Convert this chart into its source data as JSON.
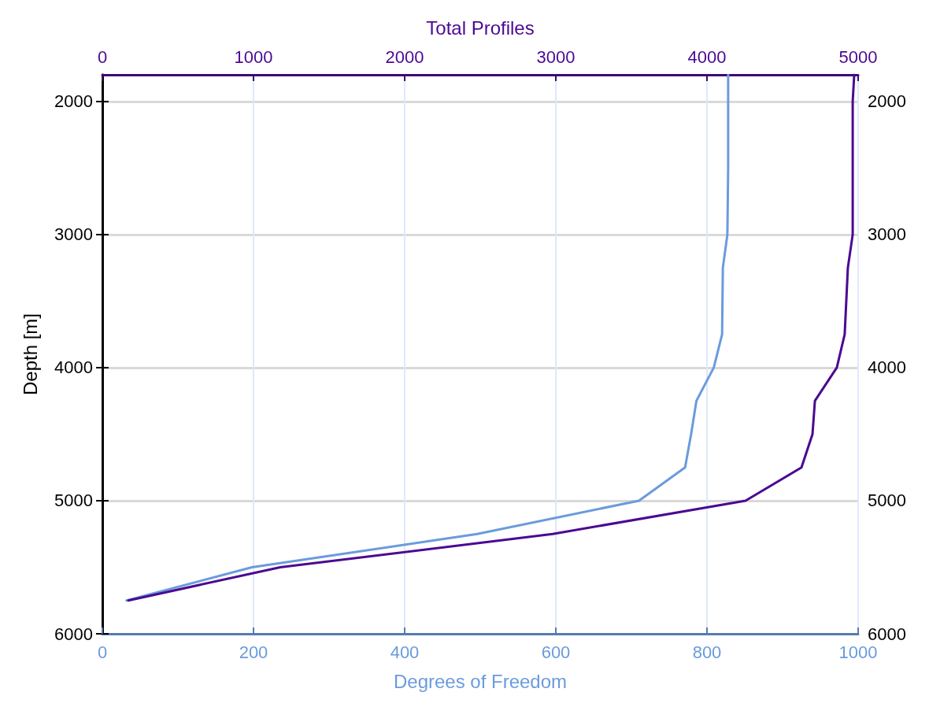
{
  "chart_data": {
    "type": "line",
    "xlabel": "Degrees of Freedom",
    "x2label": "Total Profiles",
    "ylabel": "Depth [m]",
    "xlim": [
      0,
      1000
    ],
    "xticks": [
      0,
      200,
      400,
      600,
      800,
      1000
    ],
    "x2lim": [
      0,
      5000
    ],
    "x2ticks": [
      0,
      1000,
      2000,
      3000,
      4000,
      5000
    ],
    "ylim": [
      6000,
      1800
    ],
    "yticks": [
      2000,
      3000,
      4000,
      5000,
      6000
    ],
    "y2lim": [
      6000,
      1800
    ],
    "y2ticks": [
      2000,
      3000,
      4000,
      5000,
      6000
    ],
    "grid": true,
    "marker": "none",
    "line_style": "solid",
    "series": [
      {
        "color": "#6a9bdc",
        "x": [
          828,
          828,
          827,
          821,
          820,
          809,
          786,
          779,
          771,
          710,
          496,
          198,
          32
        ],
        "values": [
          1800,
          2500,
          3000,
          3250,
          3750,
          4000,
          4250,
          4500,
          4750,
          5000,
          5250,
          5500,
          5750
        ]
      },
      {
        "color": "#4b0892",
        "axis": "x2",
        "x": [
          4974,
          4964,
          4964,
          4932,
          4911,
          4859,
          4714,
          4698,
          4625,
          4255,
          2979,
          1177,
          172
        ],
        "values": [
          1800,
          2000,
          3000,
          3250,
          3750,
          4000,
          4250,
          4500,
          4750,
          5000,
          5250,
          5500,
          5750
        ]
      }
    ]
  }
}
